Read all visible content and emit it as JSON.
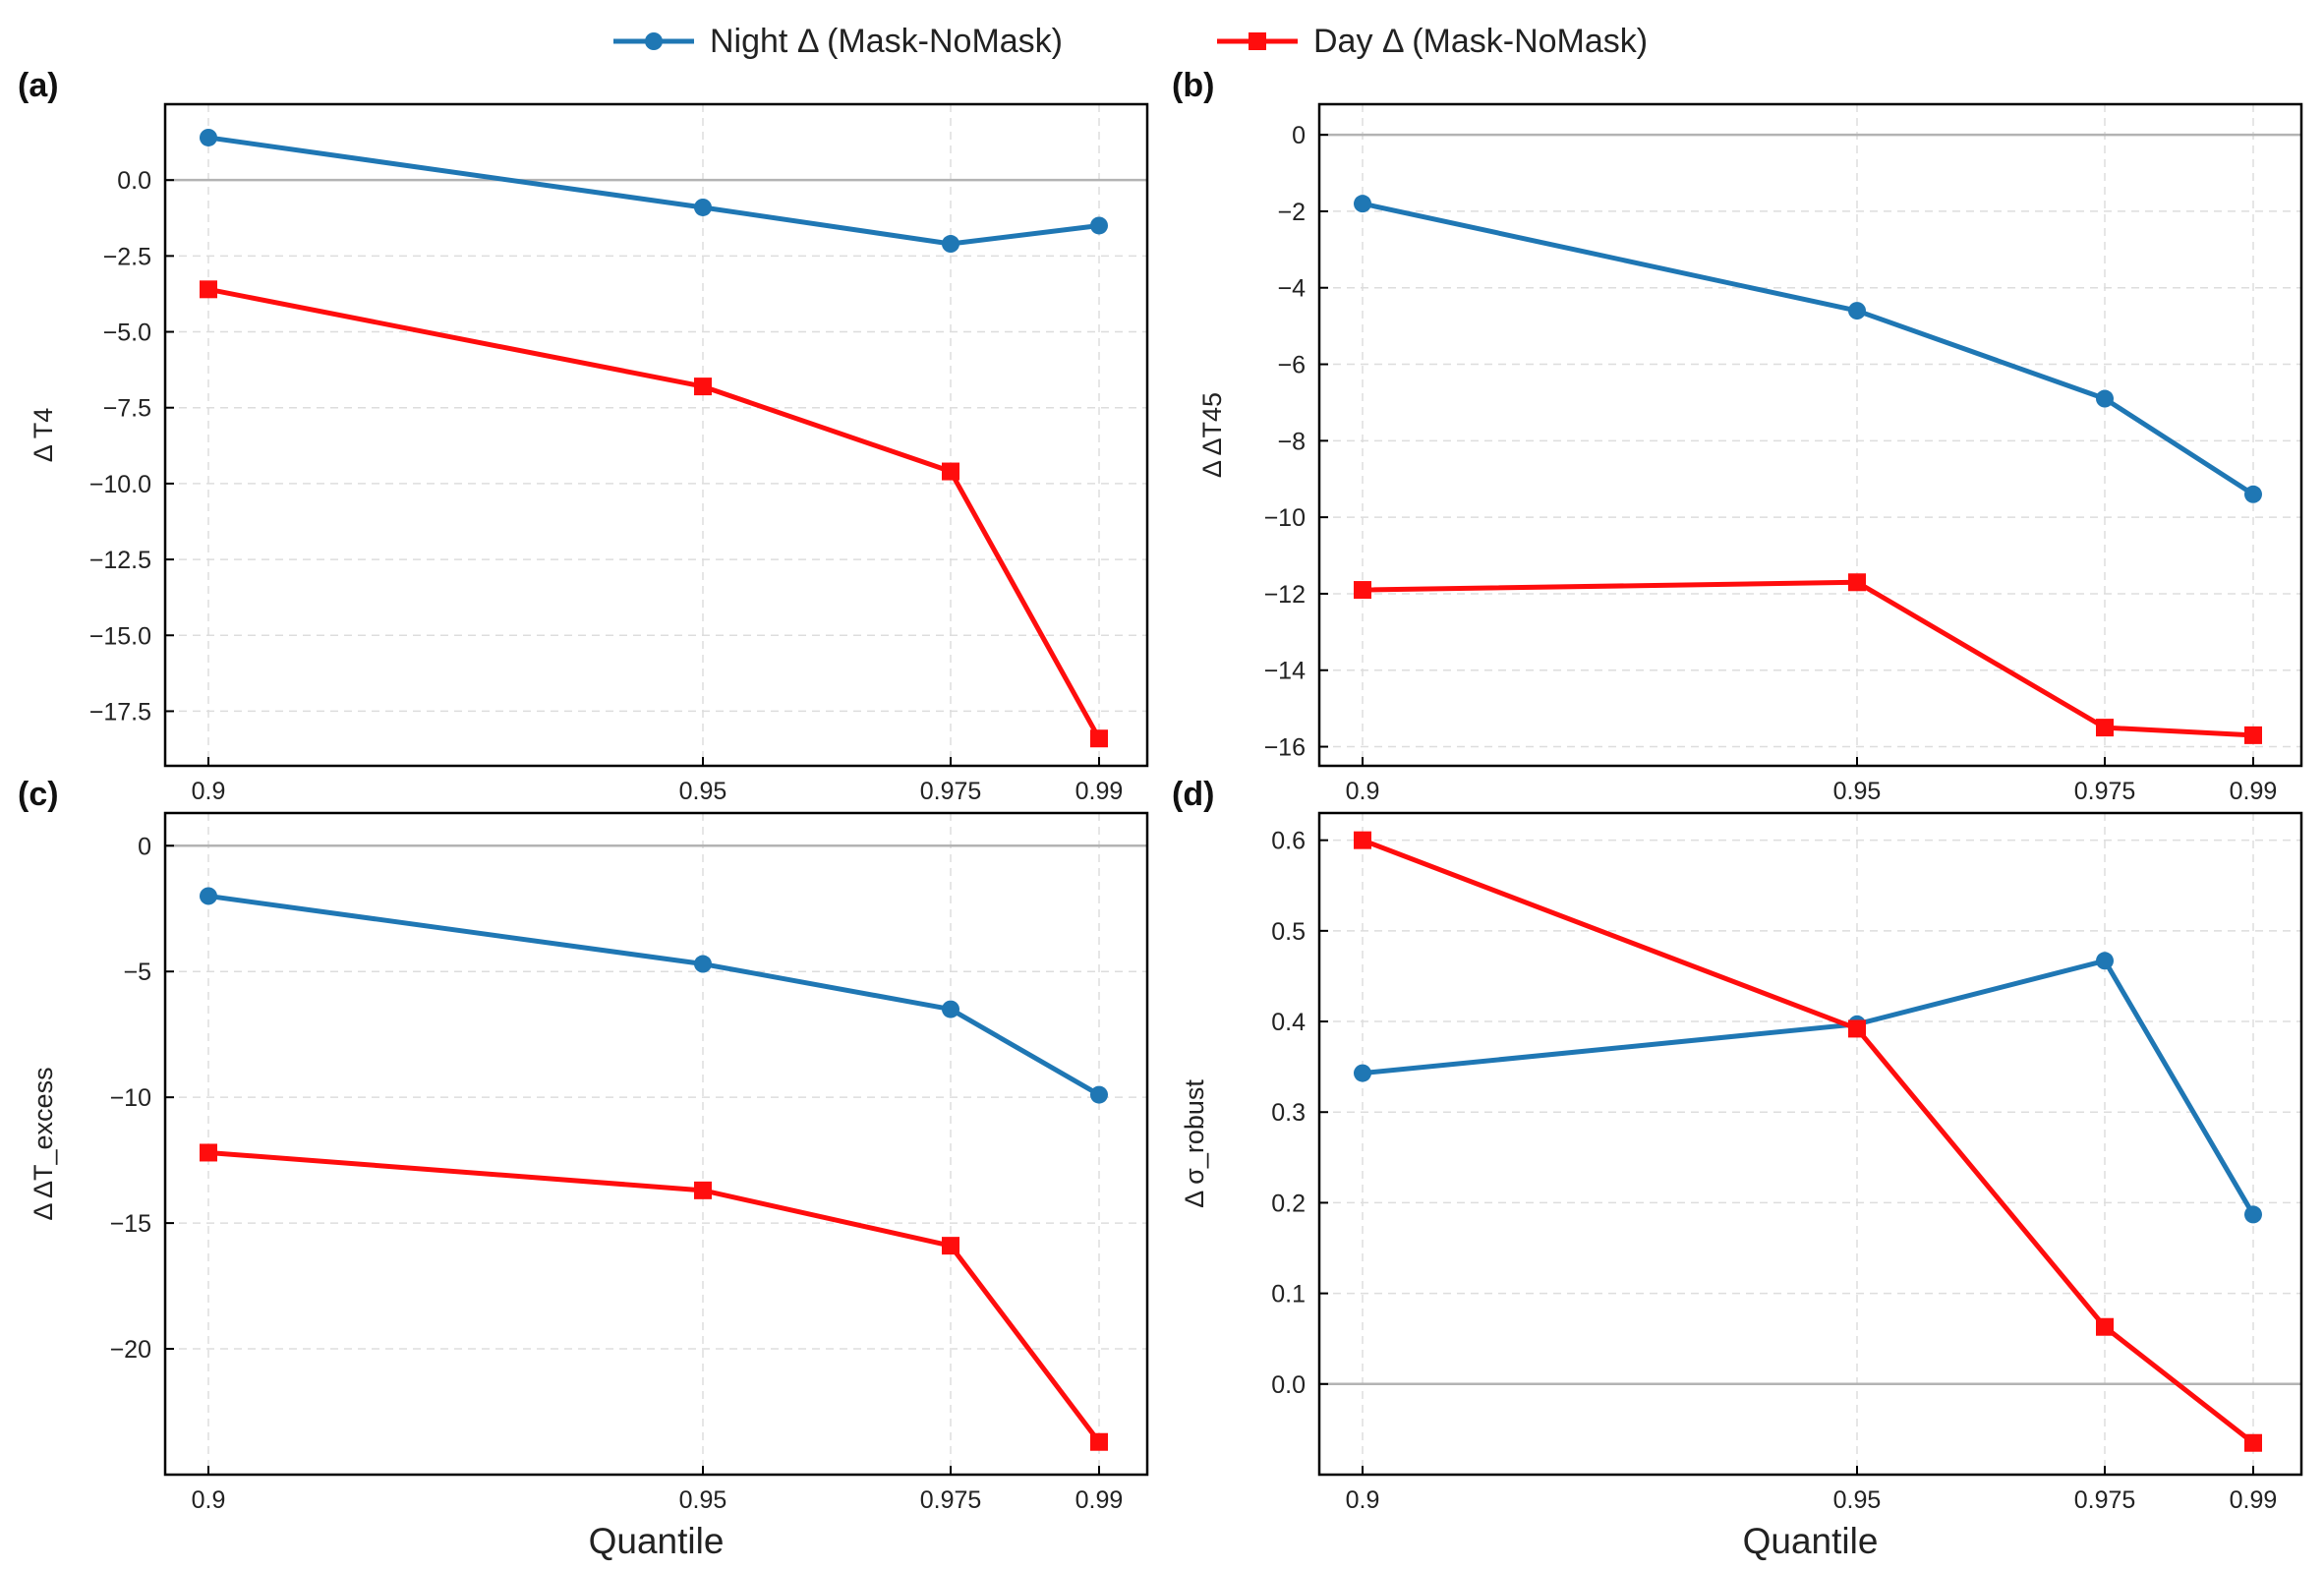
{
  "legend": {
    "night_label": "Night Δ (Mask-NoMask)",
    "day_label": "Day Δ (Mask-NoMask)"
  },
  "colors": {
    "night": "#1f77b4",
    "day": "#ff0d0d",
    "zero": "#b3b3b3",
    "grid": "#dddddd"
  },
  "xlabel": "Quantile",
  "chart_data": [
    {
      "type": "line",
      "panel": "(a)",
      "ylabel": "Δ T4",
      "x": [
        0.9,
        0.95,
        0.975,
        0.99
      ],
      "x_tick_labels": [
        "0.9",
        "0.95",
        "0.975",
        "0.99"
      ],
      "ylim": [
        -19.3,
        2.5
      ],
      "yticks": [
        0,
        -2.5,
        -5,
        -7.5,
        -10,
        -12.5,
        -15,
        -17.5
      ],
      "ytick_labels": [
        "0.0",
        "−2.5",
        "−5.0",
        "−7.5",
        "−10.0",
        "−12.5",
        "−15.0",
        "−17.5"
      ],
      "series": [
        {
          "name": "Night Δ (Mask-NoMask)",
          "values": [
            1.4,
            -0.9,
            -2.1,
            -1.5
          ]
        },
        {
          "name": "Day Δ (Mask-NoMask)",
          "values": [
            -3.6,
            -6.8,
            -9.6,
            -18.4
          ]
        }
      ]
    },
    {
      "type": "line",
      "panel": "(b)",
      "ylabel": "Δ ΔT45",
      "x": [
        0.9,
        0.95,
        0.975,
        0.99
      ],
      "x_tick_labels": [
        "0.9",
        "0.95",
        "0.975",
        "0.99"
      ],
      "ylim": [
        -16.5,
        0.8
      ],
      "yticks": [
        0,
        -2,
        -4,
        -6,
        -8,
        -10,
        -12,
        -14,
        -16
      ],
      "ytick_labels": [
        "0",
        "−2",
        "−4",
        "−6",
        "−8",
        "−10",
        "−12",
        "−14",
        "−16"
      ],
      "series": [
        {
          "name": "Night Δ (Mask-NoMask)",
          "values": [
            -1.8,
            -4.6,
            -6.9,
            -9.4
          ]
        },
        {
          "name": "Day Δ (Mask-NoMask)",
          "values": [
            -11.9,
            -11.7,
            -15.5,
            -15.7
          ]
        }
      ]
    },
    {
      "type": "line",
      "panel": "(c)",
      "ylabel": "Δ ΔT_excess",
      "x": [
        0.9,
        0.95,
        0.975,
        0.99
      ],
      "x_tick_labels": [
        "0.9",
        "0.95",
        "0.975",
        "0.99"
      ],
      "ylim": [
        -25,
        1.3
      ],
      "yticks": [
        0,
        -5,
        -10,
        -15,
        -20
      ],
      "ytick_labels": [
        "0",
        "−5",
        "−10",
        "−15",
        "−20"
      ],
      "series": [
        {
          "name": "Night Δ (Mask-NoMask)",
          "values": [
            -2.0,
            -4.7,
            -6.5,
            -9.9
          ]
        },
        {
          "name": "Day Δ (Mask-NoMask)",
          "values": [
            -12.2,
            -13.7,
            -15.9,
            -23.7
          ]
        }
      ]
    },
    {
      "type": "line",
      "panel": "(d)",
      "ylabel": "Δ σ_robust",
      "x": [
        0.9,
        0.95,
        0.975,
        0.99
      ],
      "x_tick_labels": [
        "0.9",
        "0.95",
        "0.975",
        "0.99"
      ],
      "ylim": [
        -0.1,
        0.63
      ],
      "yticks": [
        0.6,
        0.5,
        0.4,
        0.3,
        0.2,
        0.1,
        0.0
      ],
      "ytick_labels": [
        "0.6",
        "0.5",
        "0.4",
        "0.3",
        "0.2",
        "0.1",
        "0.0"
      ],
      "series": [
        {
          "name": "Night Δ (Mask-NoMask)",
          "values": [
            0.343,
            0.397,
            0.467,
            0.187
          ]
        },
        {
          "name": "Day Δ (Mask-NoMask)",
          "values": [
            0.6,
            0.392,
            0.063,
            -0.065
          ]
        }
      ]
    }
  ]
}
